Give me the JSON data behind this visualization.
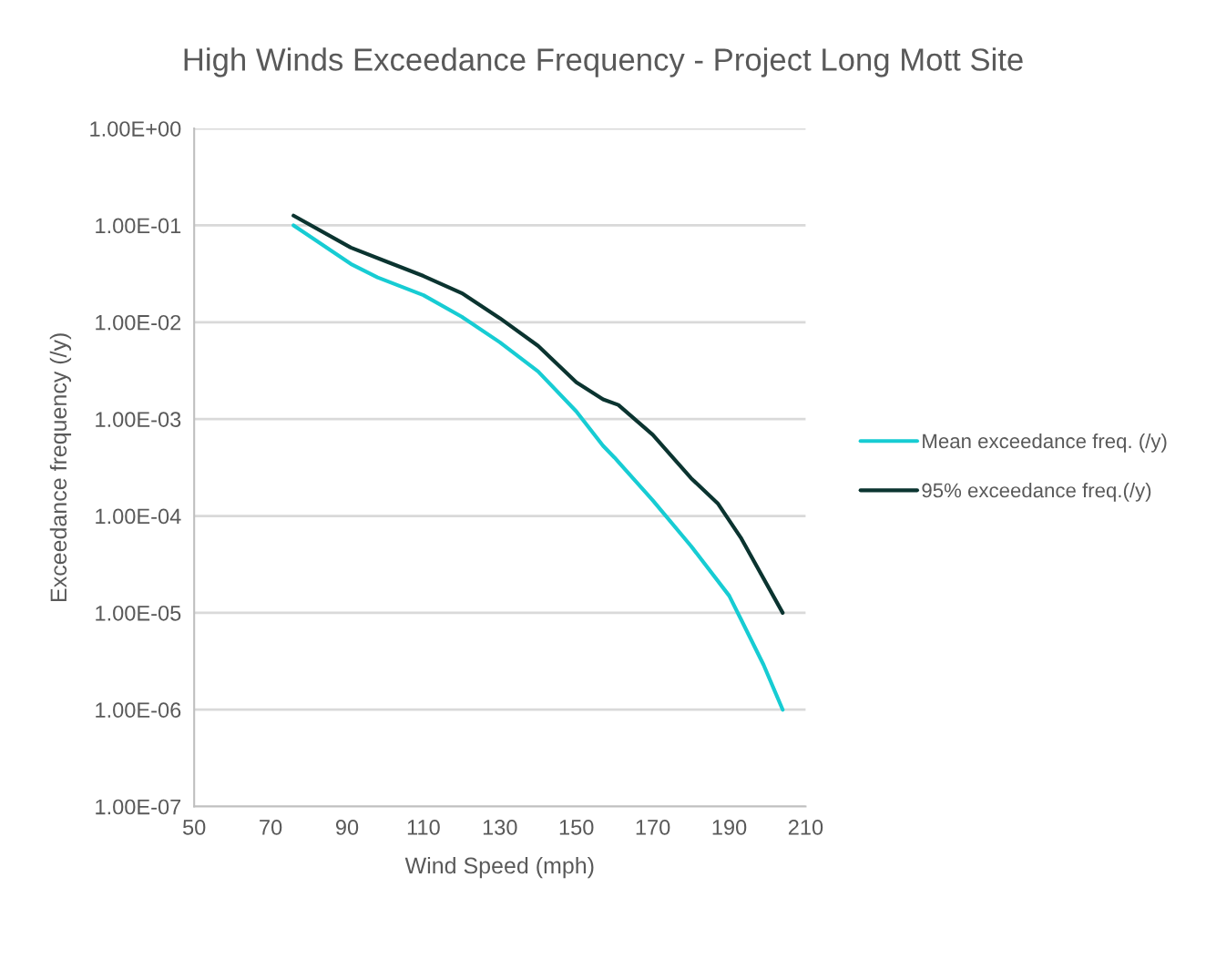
{
  "chart_data": {
    "type": "line",
    "title": "High Winds Exceedance Frequency - Project Long Mott Site",
    "xlabel": "Wind Speed (mph)",
    "ylabel": "Exceedance frequency (/y)",
    "series": [
      {
        "name": "Mean exceedance freq. (/y)",
        "color": "#17ccd3",
        "x": [
          76,
          91,
          98,
          110,
          120,
          130,
          140,
          150,
          157,
          160,
          170,
          180,
          190,
          193,
          199,
          204
        ],
        "values": [
          0.1,
          0.04,
          0.029,
          0.019,
          0.0114,
          0.0062,
          0.0031,
          0.0012,
          0.00053,
          0.0004,
          0.000145,
          4.9e-05,
          1.5e-05,
          8.7e-06,
          2.9e-06,
          1e-06
        ]
      },
      {
        "name": "95% exceedance freq.(/y)",
        "color": "#0b3430",
        "x": [
          76,
          91,
          100.5,
          110,
          120,
          130,
          140,
          150,
          157,
          161,
          170,
          180,
          187,
          193,
          204
        ],
        "values": [
          0.126,
          0.059,
          0.042,
          0.03,
          0.02,
          0.011,
          0.0057,
          0.0024,
          0.0016,
          0.0014,
          0.00069,
          0.000246,
          0.000135,
          6e-05,
          1e-05
        ]
      }
    ],
    "log": "y",
    "xlim": [
      50,
      210
    ],
    "xticks": [
      50,
      70,
      90,
      110,
      130,
      150,
      170,
      190,
      210
    ],
    "ylim": [
      1e-07,
      1
    ],
    "yticks": [
      {
        "value": 1,
        "label": "1.00E+00"
      },
      {
        "value": 0.1,
        "label": "1.00E-01"
      },
      {
        "value": 0.01,
        "label": "1.00E-02"
      },
      {
        "value": 0.001,
        "label": "1.00E-03"
      },
      {
        "value": 0.0001,
        "label": "1.00E-04"
      },
      {
        "value": 1e-05,
        "label": "1.00E-05"
      },
      {
        "value": 1e-06,
        "label": "1.00E-06"
      },
      {
        "value": 1e-07,
        "label": "1.00E-07"
      }
    ],
    "grid": "y",
    "legend": "right",
    "marker": "none",
    "line_style": "solid"
  }
}
